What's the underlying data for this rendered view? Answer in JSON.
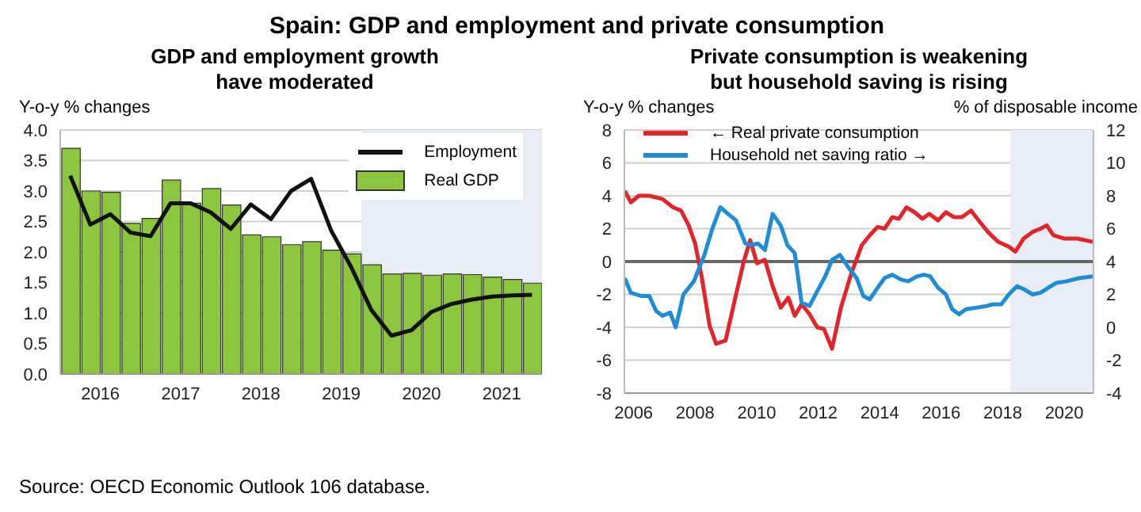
{
  "chart_data": [
    {
      "type": "other",
      "title": "Spain: GDP and employment and private consumption"
    },
    {
      "type": "bar",
      "title": "GDP and employment growth have moderated",
      "ylabel": "Y-o-y % changes",
      "x": [
        2016.125,
        2016.375,
        2016.625,
        2016.875,
        2017.125,
        2017.375,
        2017.625,
        2017.875,
        2018.125,
        2018.375,
        2018.625,
        2018.875,
        2019.125,
        2019.375,
        2019.625,
        2019.875,
        2020.125,
        2020.375,
        2020.625,
        2020.875,
        2021.125,
        2021.375,
        2021.625,
        2021.875
      ],
      "series": [
        {
          "name": "Employment",
          "type": "line",
          "color": "#111111",
          "values": [
            3.25,
            2.45,
            2.62,
            2.32,
            2.26,
            2.8,
            2.8,
            2.65,
            2.38,
            2.78,
            2.54,
            3.0,
            3.2,
            2.35,
            1.75,
            1.05,
            0.63,
            0.72,
            1.02,
            1.15,
            1.22,
            1.27,
            1.29,
            1.3
          ]
        },
        {
          "name": "Real GDP",
          "type": "bar",
          "color": "#8cc63f",
          "values": [
            3.7,
            3.0,
            2.98,
            2.47,
            2.55,
            3.18,
            2.8,
            3.04,
            2.77,
            2.28,
            2.25,
            2.12,
            2.17,
            2.03,
            1.97,
            1.79,
            1.64,
            1.65,
            1.62,
            1.64,
            1.63,
            1.59,
            1.55,
            1.49
          ]
        }
      ],
      "xlim": [
        2016,
        2022
      ],
      "xticks": [
        {
          "value": 2016.5,
          "label": "2016"
        },
        {
          "value": 2017.5,
          "label": "2017"
        },
        {
          "value": 2018.5,
          "label": "2018"
        },
        {
          "value": 2019.5,
          "label": "2019"
        },
        {
          "value": 2020.5,
          "label": "2020"
        },
        {
          "value": 2021.5,
          "label": "2021"
        }
      ],
      "ylim": [
        0,
        4
      ],
      "yticks": [
        {
          "value": 0,
          "label": "0.0"
        },
        0.5,
        {
          "value": 1,
          "label": "1.0"
        },
        1.5,
        {
          "value": 2,
          "label": "2.0"
        },
        2.5,
        {
          "value": 3,
          "label": "3.0"
        },
        3.5,
        {
          "value": 4,
          "label": "4.0"
        }
      ],
      "grid": "y",
      "legend": "top right",
      "bands": [
        {
          "axis": "x",
          "from": 2019.75,
          "to": 2022,
          "color": "#e8ecf5"
        }
      ],
      "annotations": [
        "Source: OECD Economic Outlook 106 database."
      ]
    },
    {
      "type": "line",
      "title": "Private consumption is weakening but household saving is rising",
      "ylabel": "Y-o-y % changes",
      "y2label": "% of disposable income",
      "series": [
        {
          "name": "← Real private consumption",
          "color": "#e0262b",
          "x": [
            2006.21,
            2006.41,
            2006.67,
            2007.01,
            2007.44,
            2007.78,
            2008.04,
            2008.29,
            2008.5,
            2008.72,
            2008.97,
            2009.18,
            2009.49,
            2009.83,
            2010.08,
            2010.29,
            2010.51,
            2010.77,
            2011.02,
            2011.28,
            2011.53,
            2011.74,
            2011.96,
            2012.22,
            2012.47,
            2012.69,
            2012.95,
            2013.24,
            2013.58,
            2013.92,
            2014.18,
            2014.43,
            2014.66,
            2014.91,
            2015.12,
            2015.37,
            2015.63,
            2015.89,
            2016.11,
            2016.4,
            2016.65,
            2016.91,
            2017.17,
            2017.47,
            2017.76,
            2018.02,
            2018.35,
            2018.7,
            2018.91,
            2019.18,
            2019.47,
            2019.73,
            2019.93,
            2020.15,
            2020.49,
            2020.92,
            2021.43
          ],
          "values": [
            4.3,
            3.6,
            4.0,
            4.0,
            3.8,
            3.3,
            3.1,
            2.2,
            1.1,
            -1.0,
            -3.9,
            -5.0,
            -4.8,
            -2.0,
            0,
            1.3,
            -0.1,
            0.1,
            -1.5,
            -2.8,
            -2.2,
            -3.3,
            -2.6,
            -3.2,
            -4.0,
            -4.1,
            -5.3,
            -2.8,
            -0.7,
            1.0,
            1.6,
            2.1,
            2.0,
            2.7,
            2.6,
            3.3,
            3.0,
            2.6,
            2.9,
            2.5,
            3.0,
            2.7,
            2.7,
            3.1,
            2.4,
            1.8,
            1.2,
            0.9,
            0.6,
            1.4,
            1.8,
            2.0,
            2.2,
            1.6,
            1.4,
            1.4,
            1.2
          ]
        },
        {
          "name": "Household net saving ratio →",
          "color": "#1f8dd6",
          "axis": "y2",
          "x": [
            2006.21,
            2006.41,
            2006.76,
            2007.01,
            2007.23,
            2007.44,
            2007.69,
            2007.87,
            2008.12,
            2008.46,
            2008.8,
            2009.06,
            2009.32,
            2009.57,
            2009.83,
            2010.13,
            2010.34,
            2010.54,
            2010.77,
            2011.02,
            2011.28,
            2011.5,
            2011.74,
            2011.96,
            2012.22,
            2012.47,
            2012.73,
            2012.95,
            2013.21,
            2013.5,
            2013.75,
            2013.97,
            2014.18,
            2014.43,
            2014.66,
            2014.91,
            2015.2,
            2015.43,
            2015.72,
            2015.94,
            2016.14,
            2016.4,
            2016.65,
            2016.86,
            2017.08,
            2017.3,
            2017.68,
            2017.98,
            2018.19,
            2018.45,
            2018.7,
            2018.96,
            2019.21,
            2019.47,
            2019.73,
            2019.98,
            2020.24,
            2020.58,
            2021.01,
            2021.43
          ],
          "values": [
            3.0,
            2.1,
            1.9,
            1.9,
            1.0,
            0.7,
            0.9,
            0.0,
            2.0,
            2.8,
            4.4,
            6.0,
            7.3,
            6.9,
            6.5,
            5.1,
            5.0,
            5.1,
            4.7,
            6.9,
            6.2,
            5.0,
            4.5,
            1.5,
            1.3,
            2.2,
            3.1,
            4.1,
            4.4,
            3.6,
            3.0,
            1.9,
            1.7,
            2.4,
            3.0,
            3.2,
            2.9,
            2.8,
            3.1,
            3.2,
            3.1,
            2.4,
            2.0,
            1.1,
            0.8,
            1.1,
            1.2,
            1.3,
            1.4,
            1.4,
            2.0,
            2.5,
            2.3,
            2.0,
            2.1,
            2.4,
            2.7,
            2.8,
            3.0,
            3.1
          ]
        }
      ],
      "xlim": [
        2006.2,
        2021.45
      ],
      "xticks": [
        {
          "value": 2006.5,
          "label": "2006"
        },
        {
          "value": 2008.5,
          "label": "2008"
        },
        {
          "value": 2010.5,
          "label": "2010"
        },
        {
          "value": 2012.5,
          "label": "2012"
        },
        {
          "value": 2014.5,
          "label": "2014"
        },
        {
          "value": 2016.5,
          "label": "2016"
        },
        {
          "value": 2018.5,
          "label": "2018"
        },
        {
          "value": 2020.5,
          "label": "2020"
        }
      ],
      "ylim": [
        -8,
        8
      ],
      "yticks": [
        -8,
        -6,
        -4,
        -2,
        0,
        2,
        4,
        6,
        8
      ],
      "y2lim": [
        -4,
        12
      ],
      "y2ticks": [
        -4,
        -2,
        0,
        2,
        4,
        6,
        8,
        10,
        12
      ],
      "grid": "y",
      "legend": "top left",
      "bands": [
        {
          "axis": "x",
          "from": 2018.75,
          "to": 2021.45,
          "color": "#e8ecf5"
        }
      ],
      "ref_lines": [
        {
          "axis": "y",
          "value": 0,
          "color": "#666666"
        }
      ]
    }
  ]
}
